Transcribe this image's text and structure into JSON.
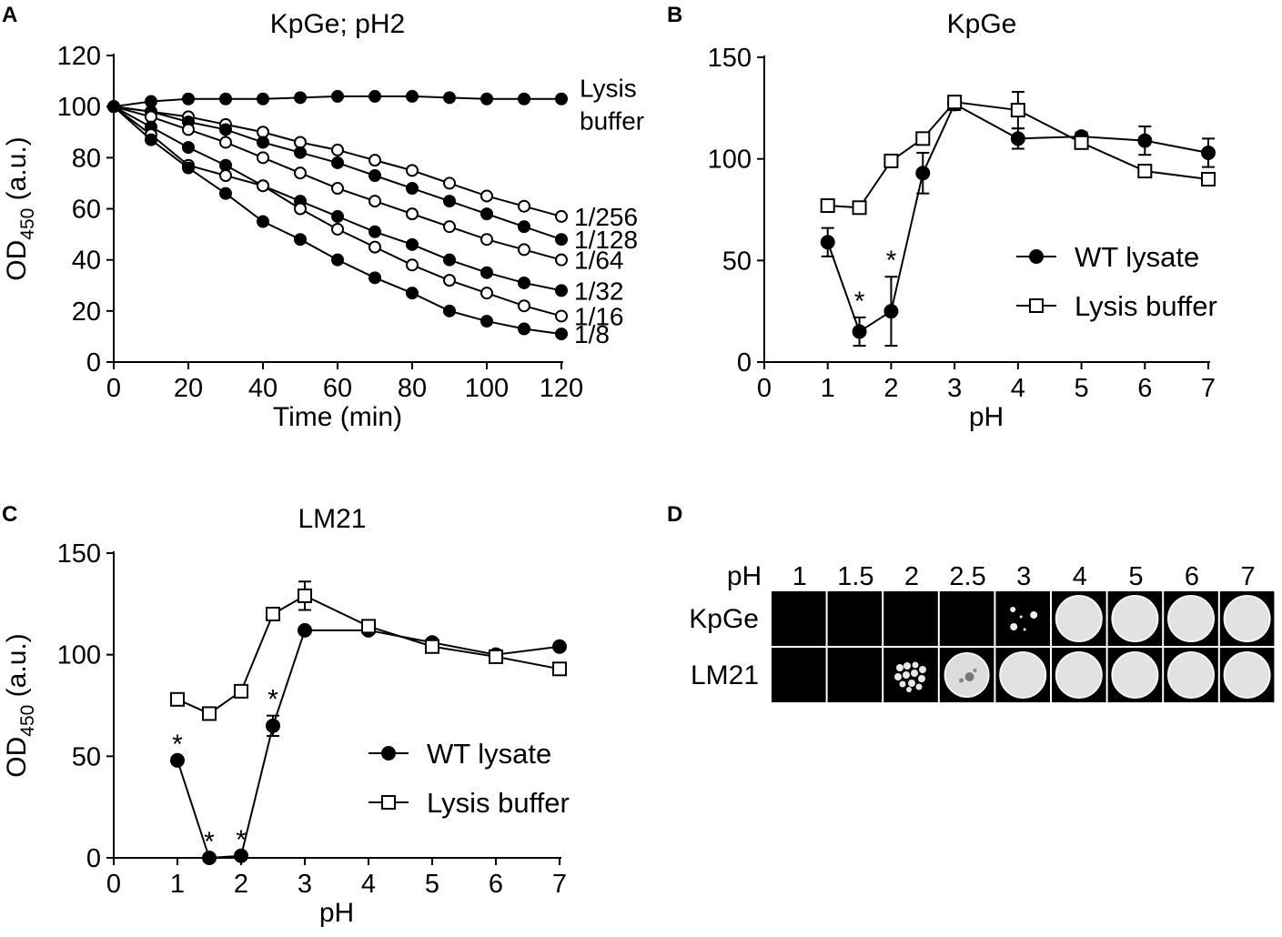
{
  "figure": {
    "panels": {
      "A": "A",
      "B": "B",
      "C": "C",
      "D": "D"
    }
  },
  "chart_data": [
    {
      "id": "A",
      "type": "line",
      "title": "KpGe; pH2",
      "xlabel": "Time (min)",
      "ylabel_main": "OD",
      "ylabel_sub": "450",
      "ylabel_suffix": " (a.u.)",
      "xlim": [
        0,
        120
      ],
      "ylim": [
        0,
        120
      ],
      "xticks": [
        0,
        20,
        40,
        60,
        80,
        100,
        120
      ],
      "yticks": [
        0,
        20,
        40,
        60,
        80,
        100,
        120
      ],
      "x": [
        0,
        10,
        20,
        30,
        40,
        50,
        60,
        70,
        80,
        90,
        100,
        110,
        120
      ],
      "series": [
        {
          "name": "Lysis buffer",
          "marker": "filled",
          "label_lines": [
            "Lysis",
            "buffer"
          ],
          "values": [
            100,
            102,
            103,
            103,
            103,
            103.5,
            104,
            104,
            104,
            103.5,
            103,
            103,
            103
          ]
        },
        {
          "name": "1/256",
          "marker": "open",
          "label_lines": [
            "1/256"
          ],
          "values": [
            100,
            98,
            96,
            93,
            90,
            86,
            83,
            79,
            75,
            70,
            65,
            61,
            57
          ]
        },
        {
          "name": "1/128",
          "marker": "filled",
          "label_lines": [
            "1/128"
          ],
          "values": [
            100,
            98,
            94,
            91,
            86,
            82,
            78,
            73,
            68,
            63,
            58,
            53,
            48
          ]
        },
        {
          "name": "1/64",
          "marker": "open",
          "label_lines": [
            "1/64"
          ],
          "values": [
            100,
            96,
            91,
            86,
            80,
            74,
            68,
            63,
            58,
            53,
            48,
            44,
            40
          ]
        },
        {
          "name": "1/32",
          "marker": "filled",
          "label_lines": [
            "1/32"
          ],
          "values": [
            100,
            92,
            84,
            77,
            69,
            63,
            57,
            51,
            46,
            40,
            35,
            31,
            28
          ]
        },
        {
          "name": "1/16",
          "marker": "open",
          "label_lines": [
            "1/16"
          ],
          "values": [
            100,
            89,
            77,
            73,
            69,
            60,
            52,
            45,
            38,
            32,
            27,
            22,
            18
          ]
        },
        {
          "name": "1/8",
          "marker": "filled",
          "label_lines": [
            "1/8"
          ],
          "values": [
            100,
            87,
            76,
            66,
            55,
            48,
            40,
            33,
            27,
            20,
            16,
            13,
            11
          ]
        }
      ]
    },
    {
      "id": "B",
      "type": "line",
      "title": "KpGe",
      "xlabel": "pH",
      "ylabel_main": "",
      "xlim": [
        0,
        7
      ],
      "ylim": [
        0,
        150
      ],
      "xticks": [
        0,
        1,
        2,
        3,
        4,
        5,
        6,
        7
      ],
      "yticks": [
        0,
        50,
        100,
        150
      ],
      "legend": [
        "WT lysate",
        "Lysis buffer"
      ],
      "series": [
        {
          "name": "WT lysate",
          "marker": "filled",
          "x": [
            1,
            1.5,
            2,
            2.5,
            3,
            4,
            5,
            6,
            7
          ],
          "values": [
            59,
            15,
            25,
            93,
            127,
            110,
            111,
            109,
            103
          ],
          "err": [
            7,
            7,
            17,
            10,
            3,
            5,
            2,
            7,
            7
          ]
        },
        {
          "name": "Lysis buffer",
          "marker": "open",
          "x": [
            1,
            1.5,
            2,
            2.5,
            3,
            4,
            5,
            6,
            7
          ],
          "values": [
            77,
            76,
            99,
            110,
            128,
            124,
            108,
            94,
            90
          ],
          "err": [
            0,
            0,
            0,
            0,
            3,
            9,
            0,
            0,
            3
          ]
        }
      ],
      "significance": [
        {
          "x": 1.5,
          "label": "*"
        },
        {
          "x": 2,
          "label": "*"
        }
      ]
    },
    {
      "id": "C",
      "type": "line",
      "title": "LM21",
      "xlabel": "pH",
      "ylabel_main": "OD",
      "ylabel_sub": "450",
      "ylabel_suffix": " (a.u.)",
      "xlim": [
        0,
        7
      ],
      "ylim": [
        0,
        150
      ],
      "xticks": [
        0,
        1,
        2,
        3,
        4,
        5,
        6,
        7
      ],
      "yticks": [
        0,
        50,
        100,
        150
      ],
      "legend": [
        "WT lysate",
        "Lysis buffer"
      ],
      "series": [
        {
          "name": "WT lysate",
          "marker": "filled",
          "x": [
            1,
            1.5,
            2,
            2.5,
            3,
            4,
            5,
            6,
            7
          ],
          "values": [
            48,
            0,
            1,
            65,
            112,
            112,
            106,
            100,
            104
          ],
          "err": [
            0,
            0,
            0,
            5,
            0,
            0,
            0,
            0,
            0
          ]
        },
        {
          "name": "Lysis buffer",
          "marker": "open",
          "x": [
            1,
            1.5,
            2,
            2.5,
            3,
            4,
            5,
            6,
            7
          ],
          "values": [
            78,
            71,
            82,
            120,
            129,
            114,
            104,
            99,
            93
          ],
          "err": [
            0,
            0,
            0,
            0,
            7,
            0,
            0,
            0,
            0
          ]
        }
      ],
      "significance": [
        {
          "x": 1,
          "label": "*"
        },
        {
          "x": 1.5,
          "label": "*"
        },
        {
          "x": 2,
          "label": "*"
        },
        {
          "x": 2.5,
          "label": "*"
        }
      ]
    }
  ],
  "plate": {
    "header": "pH",
    "columns": [
      "1",
      "1.5",
      "2",
      "2.5",
      "3",
      "4",
      "5",
      "6",
      "7"
    ],
    "rows": [
      {
        "label": "KpGe",
        "growth": [
          "none",
          "none",
          "none",
          "none",
          "sparse",
          "full",
          "full",
          "full",
          "full"
        ]
      },
      {
        "label": "LM21",
        "growth": [
          "none",
          "none",
          "colonies",
          "partial",
          "full",
          "full",
          "full",
          "full",
          "full"
        ]
      }
    ]
  }
}
